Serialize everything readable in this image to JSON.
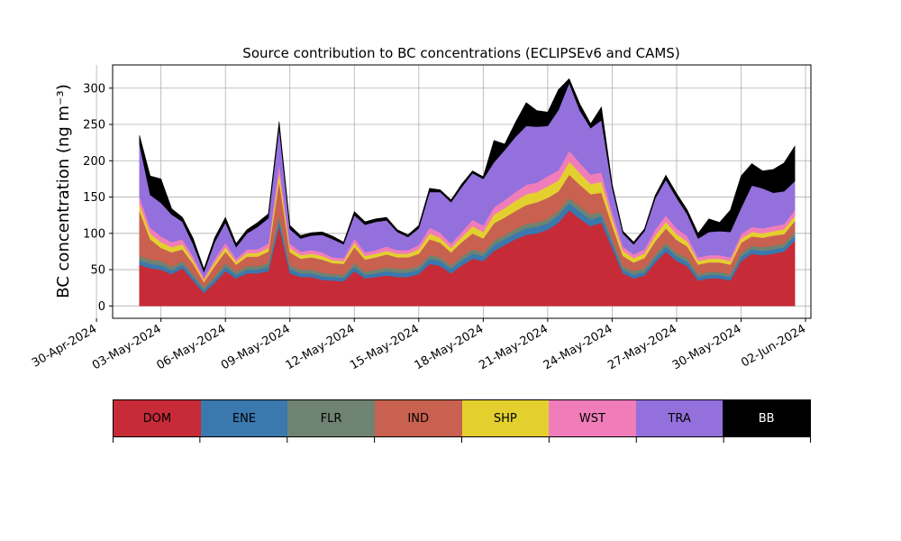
{
  "chart_data": {
    "type": "area",
    "title": "Source contribution to BC concentrations (ECLIPSEv6 and CAMS)",
    "ylabel": "BC concentration (ng m⁻³)",
    "xlabel": "",
    "ylim": [
      -17,
      332
    ],
    "xlim": [
      "2024-04-30T18:00",
      "2024-06-02T06:00"
    ],
    "yticks": [
      0,
      50,
      100,
      150,
      200,
      250,
      300
    ],
    "xticks": [
      "30-Apr-2024",
      "03-May-2024",
      "06-May-2024",
      "09-May-2024",
      "12-May-2024",
      "15-May-2024",
      "18-May-2024",
      "21-May-2024",
      "24-May-2024",
      "27-May-2024",
      "30-May-2024",
      "02-Jun-2024"
    ],
    "grid": true,
    "stacked": true,
    "x": [
      "2024-05-02T00:00",
      "2024-05-02T12:00",
      "2024-05-03T00:00",
      "2024-05-03T12:00",
      "2024-05-04T00:00",
      "2024-05-04T12:00",
      "2024-05-05T00:00",
      "2024-05-05T12:00",
      "2024-05-06T00:00",
      "2024-05-06T12:00",
      "2024-05-07T00:00",
      "2024-05-07T12:00",
      "2024-05-08T00:00",
      "2024-05-08T12:00",
      "2024-05-09T00:00",
      "2024-05-09T12:00",
      "2024-05-10T00:00",
      "2024-05-10T12:00",
      "2024-05-11T00:00",
      "2024-05-11T12:00",
      "2024-05-12T00:00",
      "2024-05-12T12:00",
      "2024-05-13T00:00",
      "2024-05-13T12:00",
      "2024-05-14T00:00",
      "2024-05-14T12:00",
      "2024-05-15T00:00",
      "2024-05-15T12:00",
      "2024-05-16T00:00",
      "2024-05-16T12:00",
      "2024-05-17T00:00",
      "2024-05-17T12:00",
      "2024-05-18T00:00",
      "2024-05-18T12:00",
      "2024-05-19T00:00",
      "2024-05-19T12:00",
      "2024-05-20T00:00",
      "2024-05-20T12:00",
      "2024-05-21T00:00",
      "2024-05-21T12:00",
      "2024-05-22T00:00",
      "2024-05-22T12:00",
      "2024-05-23T00:00",
      "2024-05-23T12:00",
      "2024-05-24T00:00",
      "2024-05-24T12:00",
      "2024-05-25T00:00",
      "2024-05-25T12:00",
      "2024-05-26T00:00",
      "2024-05-26T12:00",
      "2024-05-27T00:00",
      "2024-05-27T12:00",
      "2024-05-28T00:00",
      "2024-05-28T12:00",
      "2024-05-29T00:00",
      "2024-05-29T12:00",
      "2024-05-30T00:00",
      "2024-05-30T12:00",
      "2024-05-31T00:00",
      "2024-05-31T12:00",
      "2024-06-01T00:00",
      "2024-06-01T12:00"
    ],
    "series": [
      {
        "name": "DOM",
        "color": "#c62b37",
        "values": [
          57,
          52,
          50,
          44,
          52,
          35,
          18,
          32,
          48,
          38,
          45,
          45,
          48,
          110,
          45,
          40,
          40,
          36,
          35,
          34,
          48,
          38,
          40,
          42,
          40,
          40,
          44,
          58,
          55,
          45,
          56,
          65,
          62,
          76,
          84,
          92,
          98,
          100,
          105,
          115,
          132,
          120,
          110,
          115,
          80,
          45,
          38,
          42,
          60,
          75,
          62,
          55,
          35,
          38,
          38,
          35,
          62,
          72,
          70,
          72,
          75,
          90
        ]
      },
      {
        "name": "ENE",
        "color": "#3a78ae",
        "values": [
          6,
          6,
          6,
          5,
          5,
          5,
          4,
          5,
          6,
          5,
          5,
          5,
          6,
          8,
          6,
          5,
          5,
          5,
          5,
          5,
          6,
          5,
          5,
          6,
          6,
          6,
          6,
          7,
          7,
          6,
          7,
          7,
          7,
          8,
          8,
          8,
          9,
          9,
          9,
          10,
          10,
          10,
          9,
          9,
          7,
          5,
          5,
          5,
          6,
          7,
          6,
          6,
          5,
          5,
          5,
          5,
          6,
          6,
          6,
          6,
          6,
          7
        ]
      },
      {
        "name": "FLR",
        "color": "#6e8372",
        "values": [
          6,
          6,
          6,
          5,
          5,
          4,
          4,
          4,
          5,
          4,
          5,
          5,
          5,
          6,
          5,
          5,
          5,
          5,
          4,
          4,
          5,
          4,
          5,
          5,
          5,
          5,
          5,
          5,
          5,
          5,
          5,
          6,
          5,
          6,
          6,
          6,
          6,
          6,
          6,
          6,
          7,
          7,
          7,
          6,
          6,
          5,
          5,
          5,
          5,
          5,
          5,
          5,
          4,
          4,
          4,
          4,
          5,
          5,
          5,
          5,
          5,
          5
        ]
      },
      {
        "name": "IND",
        "color": "#c8614f",
        "values": [
          62,
          28,
          18,
          20,
          16,
          14,
          7,
          14,
          16,
          10,
          13,
          13,
          16,
          48,
          18,
          15,
          17,
          18,
          15,
          15,
          22,
          17,
          17,
          18,
          16,
          16,
          17,
          22,
          20,
          18,
          20,
          22,
          19,
          24,
          24,
          25,
          26,
          28,
          29,
          27,
          32,
          30,
          28,
          26,
          18,
          14,
          12,
          14,
          18,
          20,
          18,
          16,
          13,
          13,
          13,
          13,
          14,
          13,
          13,
          14,
          13,
          15
        ]
      },
      {
        "name": "SHP",
        "color": "#e3d02f",
        "values": [
          10,
          8,
          8,
          7,
          7,
          5,
          3,
          5,
          6,
          4,
          5,
          5,
          5,
          12,
          6,
          5,
          5,
          5,
          4,
          4,
          6,
          5,
          5,
          5,
          5,
          5,
          6,
          8,
          7,
          6,
          7,
          10,
          9,
          12,
          13,
          14,
          15,
          14,
          16,
          15,
          18,
          16,
          14,
          15,
          10,
          7,
          6,
          6,
          8,
          9,
          8,
          7,
          5,
          5,
          5,
          5,
          6,
          6,
          6,
          6,
          7,
          7
        ]
      },
      {
        "name": "WST",
        "color": "#f07dba",
        "values": [
          10,
          8,
          8,
          7,
          7,
          5,
          3,
          5,
          6,
          4,
          5,
          5,
          6,
          12,
          6,
          5,
          5,
          5,
          4,
          4,
          6,
          5,
          5,
          6,
          5,
          5,
          6,
          8,
          7,
          6,
          7,
          9,
          9,
          10,
          11,
          12,
          13,
          13,
          14,
          14,
          15,
          14,
          13,
          13,
          9,
          6,
          5,
          6,
          8,
          9,
          8,
          7,
          5,
          5,
          5,
          5,
          6,
          7,
          7,
          7,
          7,
          8
        ]
      },
      {
        "name": "TRA",
        "color": "#9370dc",
        "values": [
          72,
          45,
          46,
          38,
          24,
          17,
          8,
          23,
          28,
          16,
          22,
          31,
          35,
          50,
          20,
          18,
          20,
          24,
          25,
          19,
          32,
          38,
          39,
          36,
          25,
          18,
          23,
          49,
          56,
          57,
          62,
          64,
          64,
          62,
          69,
          76,
          81,
          77,
          69,
          83,
          93,
          72,
          64,
          72,
          33,
          18,
          14,
          25,
          43,
          49,
          42,
          30,
          26,
          32,
          33,
          35,
          36,
          57,
          55,
          46,
          45,
          40
        ]
      },
      {
        "name": "BB",
        "color": "#000000",
        "values": [
          12,
          26,
          33,
          8,
          6,
          8,
          4,
          6,
          7,
          5,
          5,
          6,
          6,
          8,
          5,
          4,
          4,
          4,
          4,
          3,
          5,
          4,
          4,
          4,
          3,
          3,
          4,
          5,
          3,
          3,
          4,
          3,
          3,
          30,
          8,
          20,
          32,
          22,
          19,
          28,
          6,
          9,
          6,
          18,
          5,
          3,
          3,
          3,
          4,
          6,
          6,
          6,
          7,
          18,
          12,
          30,
          44,
          30,
          24,
          32,
          39,
          48
        ]
      }
    ]
  },
  "legend": {
    "items": [
      {
        "label": "DOM",
        "color": "#c62b37",
        "text_color": "#000000"
      },
      {
        "label": "ENE",
        "color": "#3a78ae",
        "text_color": "#000000"
      },
      {
        "label": "FLR",
        "color": "#6e8372",
        "text_color": "#000000"
      },
      {
        "label": "IND",
        "color": "#c8614f",
        "text_color": "#000000"
      },
      {
        "label": "SHP",
        "color": "#e3d02f",
        "text_color": "#000000"
      },
      {
        "label": "WST",
        "color": "#f07dba",
        "text_color": "#000000"
      },
      {
        "label": "TRA",
        "color": "#9370dc",
        "text_color": "#000000"
      },
      {
        "label": "BB",
        "color": "#000000",
        "text_color": "#ffffff"
      }
    ]
  }
}
